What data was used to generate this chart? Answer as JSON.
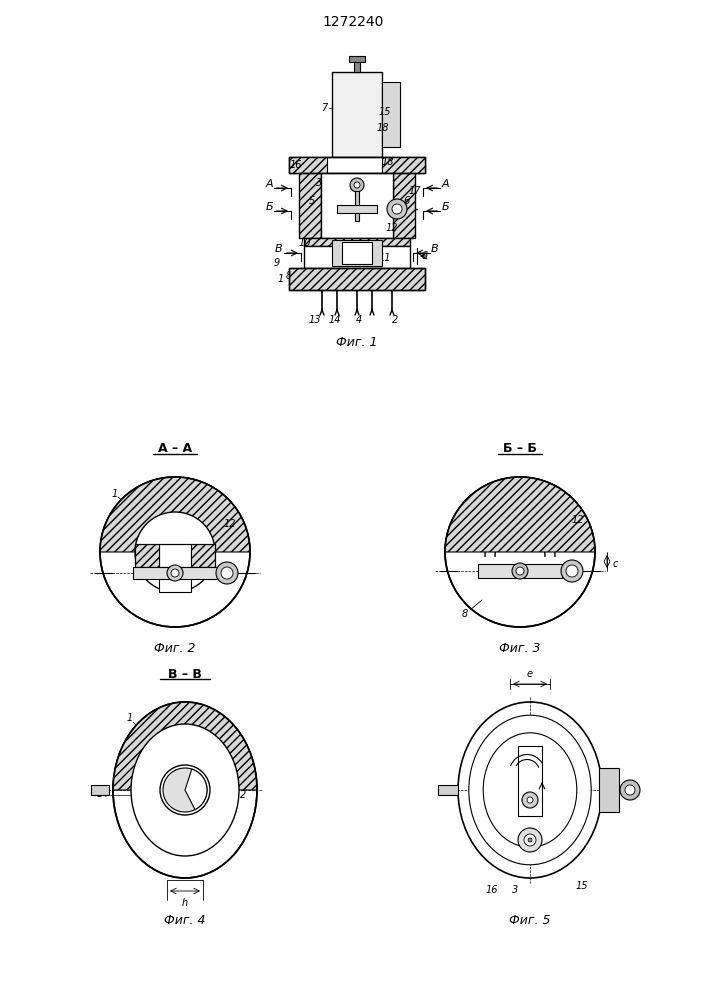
{
  "title": "1272240",
  "bg_color": "#ffffff",
  "fig1_caption": "Фиг. 1",
  "fig2_caption": "Фиг. 2",
  "fig3_caption": "Фиг. 3",
  "fig4_caption": "Фиг. 4",
  "fig5_caption": "Фиг. 5",
  "section_aa": "А – А",
  "section_bb": "Б – Б",
  "section_vv": "В – В"
}
